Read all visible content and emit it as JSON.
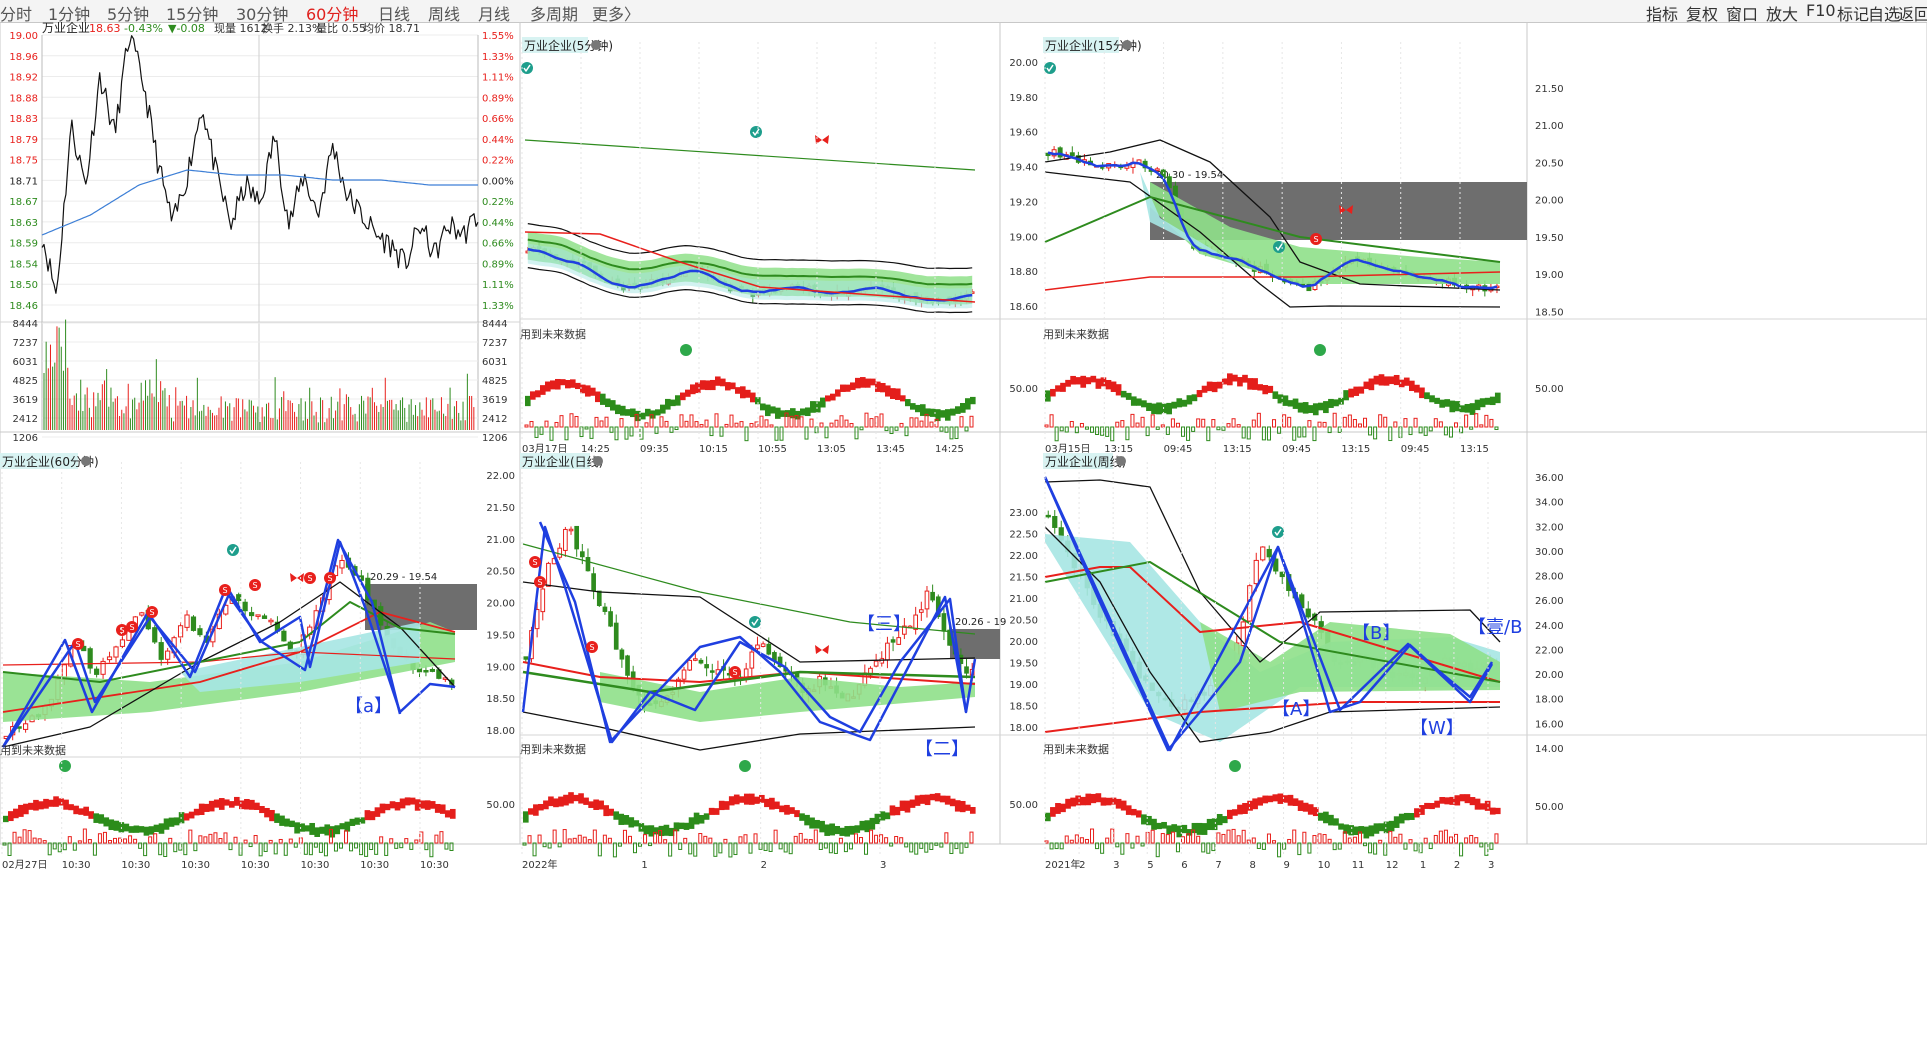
{
  "toolbar": {
    "items": [
      "分时",
      "1分钟",
      "5分钟",
      "15分钟",
      "30分钟",
      "60分钟",
      "日线",
      "周线",
      "月线",
      "多周期",
      "更多〉"
    ],
    "active_index": 5,
    "right_items": [
      "指标",
      "复权",
      "窗口",
      "放大",
      "F10",
      "标记",
      "自选",
      "返回"
    ]
  },
  "panels": {
    "intraday": {
      "title": "万业企业",
      "info": {
        "price": "18.63",
        "pct": "-0.43%",
        "chg": "▼-0.08",
        "volume": "现量 1612",
        "turnover": "换手 2.13%",
        "ratio": "量比 0.55",
        "avg": "均价 18.71"
      },
      "price_ticks": [
        "19.00",
        "18.96",
        "18.92",
        "18.88",
        "18.83",
        "18.79",
        "18.75",
        "18.71",
        "18.67",
        "18.63",
        "18.59",
        "18.54",
        "18.50",
        "18.46"
      ],
      "pct_ticks": [
        "1.55%",
        "1.33%",
        "1.11%",
        "0.89%",
        "0.66%",
        "0.44%",
        "0.22%",
        "0.00%",
        "0.22%",
        "0.44%",
        "0.66%",
        "0.89%",
        "1.11%",
        "1.33%"
      ],
      "vol_ticks": [
        "8444",
        "7237",
        "6031",
        "4825",
        "3619",
        "2412",
        "1206"
      ]
    },
    "m5": {
      "title": "万业企业(5分钟)",
      "future_label": "用到未来数据",
      "x_ticks": [
        "03月17日",
        "14:25",
        "09:35",
        "10:15",
        "10:55",
        "13:05",
        "13:45",
        "14:25"
      ]
    },
    "m15": {
      "title": "万业企业(15分钟)",
      "future_label": "用到未来数据",
      "zone_label": "20.30 - 19.54",
      "price_ticks": [
        "20.00",
        "19.80",
        "19.60",
        "19.40",
        "19.20",
        "19.00",
        "18.80",
        "18.60"
      ],
      "osc_tick": "50.00",
      "x_ticks": [
        "03月15日",
        "13:15",
        "09:45",
        "13:15",
        "09:45",
        "13:15",
        "09:45",
        "13:15"
      ]
    },
    "right_axis": {
      "ticks": [
        "21.50",
        "21.00",
        "20.50",
        "20.00",
        "19.50",
        "19.00",
        "18.50"
      ],
      "osc_tick": "50.00"
    },
    "m60": {
      "title": "万业企业(60分钟)",
      "future_label": "用到未来数据",
      "zone_label": "20.29 - 19.54",
      "wave_label": "【a】",
      "x_ticks": [
        "02月27日",
        "10:30",
        "10:30",
        "10:30",
        "10:30",
        "10:30",
        "10:30",
        "10:30"
      ]
    },
    "daily": {
      "title": "万业企业(日线)",
      "future_label": "用到未来数据",
      "zone_label": "20.26 - 19",
      "wave_labels": [
        "【三】",
        "【二】"
      ],
      "price_ticks": [
        "22.00",
        "21.50",
        "21.00",
        "20.50",
        "20.00",
        "19.50",
        "19.00",
        "18.50",
        "18.00"
      ],
      "osc_tick": "50.00",
      "x_ticks": [
        "2022年",
        "1",
        "2",
        "3"
      ]
    },
    "weekly": {
      "title": "万业企业(周线)",
      "future_label": "用到未来数据",
      "wave_labels": [
        "【B】",
        "【A】",
        "【W】",
        "【壹/B"
      ],
      "price_ticks": [
        "23.00",
        "22.50",
        "22.00",
        "21.50",
        "21.00",
        "20.50",
        "20.00",
        "19.50",
        "19.00",
        "18.50",
        "18.00"
      ],
      "right_ticks": [
        "36.00",
        "34.00",
        "32.00",
        "30.00",
        "28.00",
        "26.00",
        "24.00",
        "22.00",
        "20.00",
        "18.00",
        "16.00",
        "14.00"
      ],
      "osc_tick": "50.00",
      "x_ticks": [
        "2021年",
        "2",
        "3",
        "5",
        "6",
        "7",
        "8",
        "9",
        "10",
        "11",
        "12",
        "1",
        "2",
        "3"
      ]
    }
  },
  "colors": {
    "up": "#e8201c",
    "down": "#2e8b1e",
    "wave": "#1f3fe0",
    "zone": "#6e6e6e",
    "band_fill": "#8fe08a",
    "teal_fill": "#a6e6e3",
    "axis_red": "#e8201c",
    "axis_green": "#2e8b1e"
  }
}
